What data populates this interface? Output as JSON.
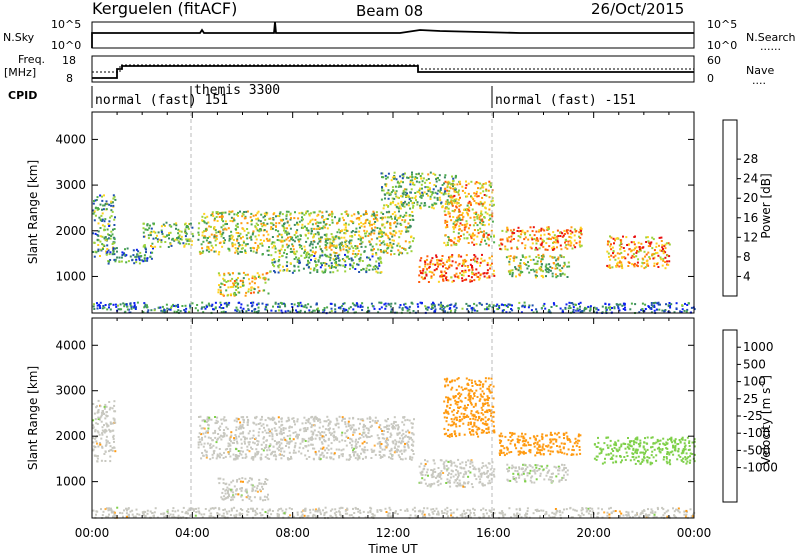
{
  "header": {
    "station": "Kerguelen  (fitACF)",
    "beam": "Beam 08",
    "date": "26/Oct/2015"
  },
  "colors": {
    "power": [
      "#0a1ef0",
      "#1f4fb0",
      "#3a8a60",
      "#4caa4c",
      "#9bd23a",
      "#ffd21e",
      "#ff9a10",
      "#ff5a0a",
      "#e81010"
    ],
    "velocity": [
      "#e81010",
      "#ff5a0a",
      "#ff9a10",
      "#ffb040",
      "#c8c8c0",
      "#c8c8c0",
      "#7fd04a",
      "#3a9a60",
      "#2a8aa0",
      "#1a3ad0"
    ],
    "ground": "#c8c8c0"
  },
  "nsky_panel": {
    "left_label": "N.Sky",
    "left_ticks": [
      "10^5",
      "10^0"
    ],
    "right_ticks": [
      "10^5",
      "10^0"
    ],
    "right_label": "N.Search",
    "right_legend": "......"
  },
  "freq_panel": {
    "left_label_1": "Freq.",
    "left_label_2": "[MHz]",
    "left_ticks": [
      "18",
      "8"
    ],
    "right_ticks": [
      "60",
      "0"
    ],
    "right_label": "Nave",
    "right_legend": "...."
  },
  "cpid_panel": {
    "label": "CPID",
    "segments": [
      "normal (fast) 151",
      "themis 3300",
      "normal (fast) -151"
    ]
  },
  "chart_data": [
    {
      "type": "heatmap",
      "name": "power",
      "ylabel": "Slant Range [km]",
      "xlabel": "",
      "ylim": [
        200,
        4600
      ],
      "yticks": [
        "1000",
        "2000",
        "3000",
        "4000"
      ],
      "x_range_hours": [
        0,
        24
      ],
      "colorbar": {
        "label": "Power [dB]",
        "ticks": [
          "4",
          "8",
          "12",
          "16",
          "20",
          "24",
          "28"
        ]
      },
      "echo_regions": [
        {
          "t0": 0.0,
          "t1": 0.9,
          "r0": 1450,
          "r1": 2800,
          "p": 12
        },
        {
          "t0": 0.6,
          "t1": 2.4,
          "r0": 1300,
          "r1": 1650,
          "p": 10
        },
        {
          "t0": 2.0,
          "t1": 4.0,
          "r0": 1650,
          "r1": 2200,
          "p": 14
        },
        {
          "t0": 4.2,
          "t1": 12.8,
          "r0": 1500,
          "r1": 2450,
          "p": 16
        },
        {
          "t0": 5.0,
          "t1": 7.0,
          "r0": 600,
          "r1": 1100,
          "p": 18
        },
        {
          "t0": 7.0,
          "t1": 11.5,
          "r0": 1100,
          "r1": 1500,
          "p": 12
        },
        {
          "t0": 11.5,
          "t1": 14.5,
          "r0": 2500,
          "r1": 3300,
          "p": 14
        },
        {
          "t0": 13.0,
          "t1": 16.0,
          "r0": 900,
          "r1": 1500,
          "p": 24
        },
        {
          "t0": 14.0,
          "t1": 16.0,
          "r0": 1700,
          "r1": 3100,
          "p": 20
        },
        {
          "t0": 16.2,
          "t1": 19.5,
          "r0": 1600,
          "r1": 2100,
          "p": 22
        },
        {
          "t0": 16.5,
          "t1": 19.0,
          "r0": 1000,
          "r1": 1500,
          "p": 16
        },
        {
          "t0": 20.5,
          "t1": 23.0,
          "r0": 1200,
          "r1": 1900,
          "p": 22
        },
        {
          "t0": 0.0,
          "t1": 24.0,
          "r0": 220,
          "r1": 450,
          "p": 8
        }
      ]
    },
    {
      "type": "heatmap",
      "name": "velocity",
      "ylabel": "Slant Range [km]",
      "xlabel": "Time UT",
      "ylim": [
        200,
        4600
      ],
      "yticks": [
        "1000",
        "2000",
        "3000",
        "4000"
      ],
      "x_range_hours": [
        0,
        24
      ],
      "xticks": [
        "00:00",
        "04:00",
        "08:00",
        "12:00",
        "16:00",
        "20:00",
        "00:00"
      ],
      "colorbar": {
        "label": "Velocity [m s",
        "label_sup": "-1",
        "label_end": "]",
        "ticks": [
          "1000",
          "500",
          "100",
          "25",
          "-25",
          "-100",
          "-500",
          "-1000"
        ]
      },
      "echo_regions": [
        {
          "t0": 0.0,
          "t1": 0.9,
          "r0": 1450,
          "r1": 2800,
          "v": 0
        },
        {
          "t0": 4.2,
          "t1": 12.8,
          "r0": 1500,
          "r1": 2450,
          "v": 0
        },
        {
          "t0": 5.0,
          "t1": 7.0,
          "r0": 600,
          "r1": 1100,
          "v": 0
        },
        {
          "t0": 13.0,
          "t1": 16.0,
          "r0": 900,
          "r1": 1500,
          "v": 0
        },
        {
          "t0": 14.0,
          "t1": 16.0,
          "r0": 2000,
          "r1": 3300,
          "v": -300
        },
        {
          "t0": 16.2,
          "t1": 19.5,
          "r0": 1600,
          "r1": 2100,
          "v": -300
        },
        {
          "t0": 16.5,
          "t1": 19.0,
          "r0": 1000,
          "r1": 1400,
          "v": 80
        },
        {
          "t0": 20.0,
          "t1": 24.0,
          "r0": 1400,
          "r1": 2000,
          "v": 300
        },
        {
          "t0": 0.0,
          "t1": 24.0,
          "r0": 220,
          "r1": 450,
          "v": 0
        }
      ]
    }
  ]
}
